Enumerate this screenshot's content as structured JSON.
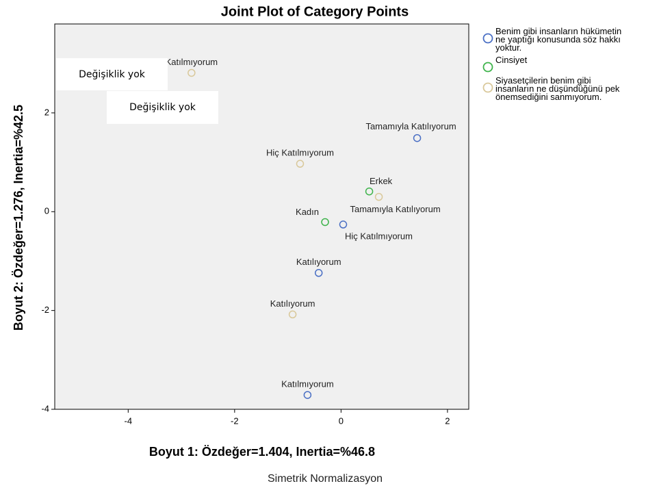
{
  "chart_data": {
    "type": "scatter",
    "title": "Joint Plot of Category Points",
    "xlabel": "Boyut 1: Özdeğer=1.404, Inertia=%46.8",
    "ylabel": "Boyut 2: Özdeğer=1.276, Inertia=%42.5",
    "subtitle": "Simetrik Normalizasyon",
    "annotations": [
      "Değişiklik yok",
      "Değişiklik yok"
    ],
    "xlim": [
      -5.38,
      2.4
    ],
    "ylim": [
      -4,
      3.8
    ],
    "xticks": [
      -4,
      -2,
      0,
      2
    ],
    "yticks": [
      -4,
      -2,
      0,
      2
    ],
    "series": [
      {
        "name": "Benim gibi insanların hükümetin ne yaptığı konusunda söz hakkı yoktur.",
        "color": "#4a6fc4",
        "x": [
          1.43,
          0.04,
          -0.42,
          -0.63
        ],
        "values": [
          1.49,
          -0.26,
          -1.24,
          -3.71
        ],
        "labels": [
          "Tamamıyla Katılıyorum",
          "Hiç Katılmıyorum",
          "Katılıyorum",
          "Katılmıyorum"
        ]
      },
      {
        "name": "Cinsiyet",
        "color": "#3db34a",
        "x": [
          0.53,
          -0.3
        ],
        "values": [
          0.41,
          -0.21
        ],
        "labels": [
          "Erkek",
          "Kadın"
        ]
      },
      {
        "name": "Siyasetçilerin benim gibi insanların ne düşündüğünü pek önemsediğini sanmıyorum.",
        "color": "#d9c89a",
        "x": [
          -2.81,
          -0.77,
          0.71,
          -0.91
        ],
        "values": [
          2.81,
          0.97,
          0.3,
          -2.08
        ],
        "labels": [
          "Katılmıyorum",
          "Hiç Katılmıyorum",
          "Tamamıyla Katılıyorum",
          "Katılıyorum"
        ]
      }
    ]
  }
}
